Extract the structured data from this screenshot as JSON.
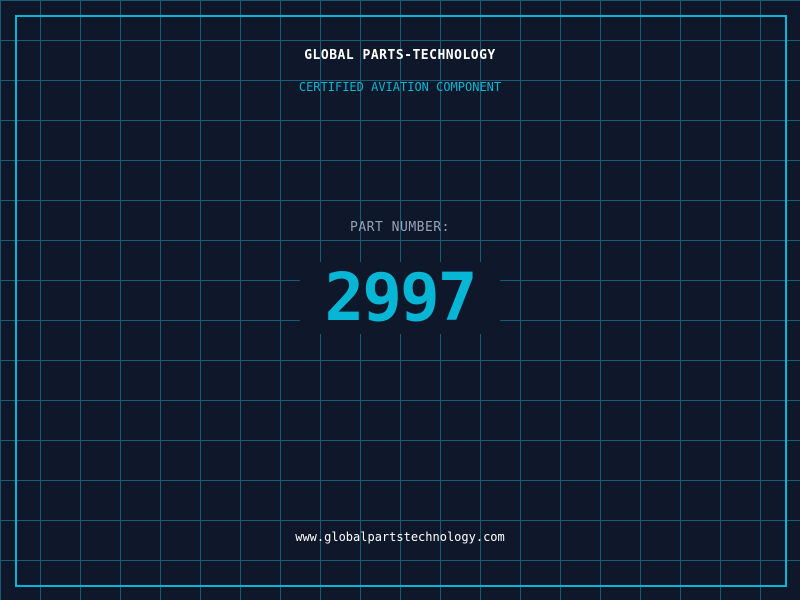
{
  "header": {
    "title": "GLOBAL PARTS-TECHNOLOGY",
    "subtitle": "CERTIFIED AVIATION COMPONENT"
  },
  "part": {
    "label": "PART NUMBER:",
    "number": "2997"
  },
  "footer": {
    "url": "www.globalpartstechnology.com"
  },
  "colors": {
    "background": "#0f172a",
    "accent": "#06b6d4",
    "grid": "#155e75"
  }
}
